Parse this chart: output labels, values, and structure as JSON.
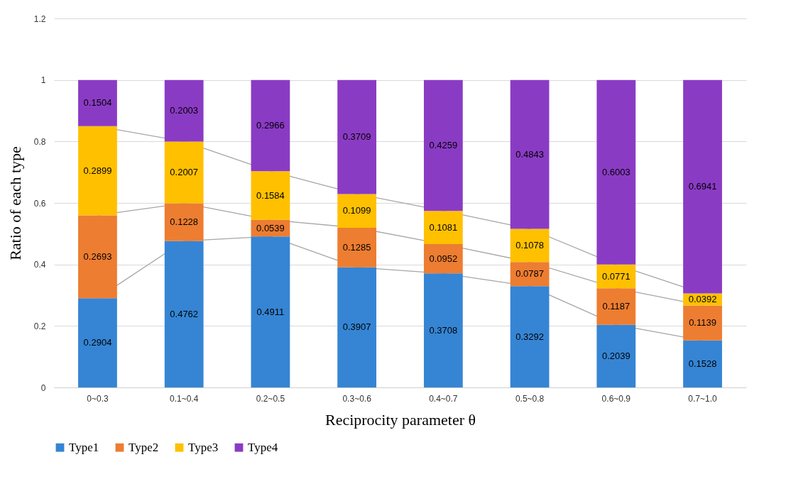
{
  "chart_data": {
    "type": "bar",
    "stacked": true,
    "xlabel": "Reciprocity parameter  θ",
    "ylabel": "Ratio of each type",
    "categories": [
      "0~0.3",
      "0.1~0.4",
      "0.2~0.5",
      "0.3~0.6",
      "0.4~0.7",
      "0.5~0.8",
      "0.6~0.9",
      "0.7~1.0"
    ],
    "series": [
      {
        "name": "Type1",
        "color": "#3585d4",
        "values": [
          0.2904,
          0.4762,
          0.4911,
          0.3907,
          0.3708,
          0.3292,
          0.2039,
          0.1528
        ]
      },
      {
        "name": "Type2",
        "color": "#ed7d31",
        "values": [
          0.2693,
          0.1228,
          0.0539,
          0.1285,
          0.0952,
          0.0787,
          0.1187,
          0.1139
        ]
      },
      {
        "name": "Type3",
        "color": "#ffc000",
        "values": [
          0.2899,
          0.2007,
          0.1584,
          0.1099,
          0.1081,
          0.1078,
          0.0771,
          0.0392
        ]
      },
      {
        "name": "Type4",
        "color": "#8a3bc4",
        "values": [
          0.1504,
          0.2003,
          0.2966,
          0.3709,
          0.4259,
          0.4843,
          0.6003,
          0.6941
        ]
      }
    ],
    "ylim": [
      0,
      1.2
    ],
    "yticks": [
      0,
      0.2,
      0.4,
      0.6,
      0.8,
      1,
      1.2
    ],
    "grid": "y",
    "legend": "bottom",
    "data_labels": true
  }
}
